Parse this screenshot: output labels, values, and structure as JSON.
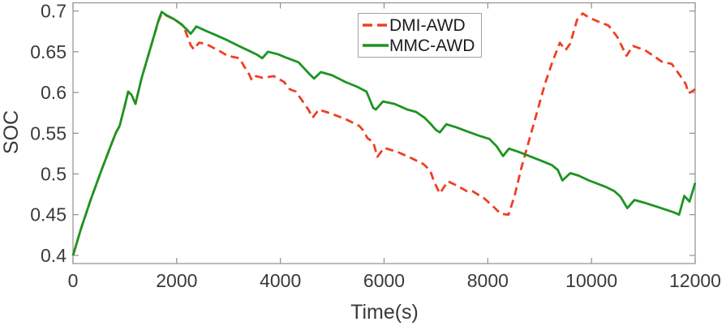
{
  "figure": {
    "background": "#ffffff"
  },
  "chart_data": {
    "type": "line",
    "title": "",
    "xlabel": "Time(s)",
    "ylabel": "SOC",
    "xlim": [
      0,
      12000
    ],
    "ylim": [
      0.39,
      0.71
    ],
    "xtick_labels": [
      "0",
      "2000",
      "4000",
      "6000",
      "8000",
      "10000",
      "12000"
    ],
    "ytick_labels": [
      "0.4",
      "0.45",
      "0.5",
      "0.55",
      "0.6",
      "0.65",
      "0.7"
    ],
    "grid": false,
    "box": true,
    "axis_color": "#909090",
    "tick_label_color": "#3a3a3a",
    "legend": {
      "position": "top-center",
      "border_color": "#a2a2a2",
      "entries": [
        "DMI-AWD",
        "MMC-AWD"
      ]
    },
    "series": [
      {
        "name": "DMI-AWD",
        "color": "#ee4023",
        "style": "dashed",
        "points": [
          [
            0,
            0.4
          ],
          [
            150,
            0.432
          ],
          [
            350,
            0.47
          ],
          [
            550,
            0.505
          ],
          [
            750,
            0.538
          ],
          [
            830,
            0.551
          ],
          [
            900,
            0.559
          ],
          [
            1000,
            0.584
          ],
          [
            1064,
            0.601
          ],
          [
            1130,
            0.597
          ],
          [
            1205,
            0.586
          ],
          [
            1320,
            0.617
          ],
          [
            1500,
            0.656
          ],
          [
            1650,
            0.688
          ],
          [
            1710,
            0.697
          ],
          [
            1850,
            0.693
          ],
          [
            2000,
            0.688
          ],
          [
            2130,
            0.682
          ],
          [
            2270,
            0.658
          ],
          [
            2330,
            0.653
          ],
          [
            2430,
            0.661
          ],
          [
            2550,
            0.66
          ],
          [
            2850,
            0.65
          ],
          [
            2980,
            0.645
          ],
          [
            3210,
            0.642
          ],
          [
            3320,
            0.63
          ],
          [
            3400,
            0.622
          ],
          [
            3450,
            0.615
          ],
          [
            3530,
            0.62
          ],
          [
            3650,
            0.618
          ],
          [
            3870,
            0.62
          ],
          [
            4070,
            0.613
          ],
          [
            4180,
            0.604
          ],
          [
            4300,
            0.601
          ],
          [
            4430,
            0.589
          ],
          [
            4550,
            0.578
          ],
          [
            4620,
            0.569
          ],
          [
            4740,
            0.579
          ],
          [
            4980,
            0.574
          ],
          [
            5270,
            0.567
          ],
          [
            5520,
            0.559
          ],
          [
            5590,
            0.554
          ],
          [
            5680,
            0.544
          ],
          [
            5790,
            0.539
          ],
          [
            5870,
            0.521
          ],
          [
            6000,
            0.532
          ],
          [
            6260,
            0.527
          ],
          [
            6540,
            0.519
          ],
          [
            6760,
            0.512
          ],
          [
            6890,
            0.504
          ],
          [
            6960,
            0.491
          ],
          [
            7075,
            0.476
          ],
          [
            7230,
            0.491
          ],
          [
            7360,
            0.487
          ],
          [
            7510,
            0.482
          ],
          [
            7590,
            0.479
          ],
          [
            7700,
            0.479
          ],
          [
            7930,
            0.47
          ],
          [
            8090,
            0.461
          ],
          [
            8250,
            0.451
          ],
          [
            8400,
            0.45
          ],
          [
            8520,
            0.474
          ],
          [
            8650,
            0.508
          ],
          [
            8800,
            0.542
          ],
          [
            8950,
            0.576
          ],
          [
            9100,
            0.61
          ],
          [
            9250,
            0.638
          ],
          [
            9390,
            0.661
          ],
          [
            9500,
            0.652
          ],
          [
            9590,
            0.66
          ],
          [
            9720,
            0.689
          ],
          [
            9830,
            0.697
          ],
          [
            9950,
            0.692
          ],
          [
            10130,
            0.687
          ],
          [
            10330,
            0.682
          ],
          [
            10500,
            0.668
          ],
          [
            10675,
            0.645
          ],
          [
            10800,
            0.657
          ],
          [
            11030,
            0.652
          ],
          [
            11240,
            0.643
          ],
          [
            11350,
            0.638
          ],
          [
            11550,
            0.635
          ],
          [
            11740,
            0.618
          ],
          [
            11820,
            0.61
          ],
          [
            11870,
            0.599
          ],
          [
            11930,
            0.601
          ],
          [
            12000,
            0.604
          ]
        ]
      },
      {
        "name": "MMC-AWD",
        "color": "#1d9421",
        "style": "solid",
        "points": [
          [
            0,
            0.4
          ],
          [
            150,
            0.432
          ],
          [
            350,
            0.47
          ],
          [
            550,
            0.505
          ],
          [
            750,
            0.538
          ],
          [
            830,
            0.551
          ],
          [
            900,
            0.559
          ],
          [
            1000,
            0.584
          ],
          [
            1064,
            0.601
          ],
          [
            1130,
            0.597
          ],
          [
            1205,
            0.586
          ],
          [
            1320,
            0.617
          ],
          [
            1500,
            0.656
          ],
          [
            1650,
            0.689
          ],
          [
            1710,
            0.699
          ],
          [
            1800,
            0.695
          ],
          [
            1950,
            0.69
          ],
          [
            2100,
            0.683
          ],
          [
            2200,
            0.677
          ],
          [
            2270,
            0.672
          ],
          [
            2380,
            0.681
          ],
          [
            2550,
            0.676
          ],
          [
            2770,
            0.67
          ],
          [
            2980,
            0.664
          ],
          [
            3200,
            0.657
          ],
          [
            3400,
            0.651
          ],
          [
            3560,
            0.646
          ],
          [
            3650,
            0.642
          ],
          [
            3760,
            0.65
          ],
          [
            3950,
            0.647
          ],
          [
            4100,
            0.643
          ],
          [
            4350,
            0.637
          ],
          [
            4570,
            0.622
          ],
          [
            4650,
            0.617
          ],
          [
            4780,
            0.625
          ],
          [
            5000,
            0.621
          ],
          [
            5250,
            0.613
          ],
          [
            5480,
            0.607
          ],
          [
            5660,
            0.601
          ],
          [
            5790,
            0.581
          ],
          [
            5840,
            0.579
          ],
          [
            5980,
            0.589
          ],
          [
            6200,
            0.586
          ],
          [
            6450,
            0.579
          ],
          [
            6620,
            0.576
          ],
          [
            6780,
            0.569
          ],
          [
            6890,
            0.562
          ],
          [
            7000,
            0.554
          ],
          [
            7075,
            0.551
          ],
          [
            7200,
            0.561
          ],
          [
            7400,
            0.557
          ],
          [
            7650,
            0.551
          ],
          [
            7830,
            0.547
          ],
          [
            8030,
            0.543
          ],
          [
            8170,
            0.534
          ],
          [
            8295,
            0.522
          ],
          [
            8410,
            0.531
          ],
          [
            8600,
            0.527
          ],
          [
            8800,
            0.522
          ],
          [
            9000,
            0.517
          ],
          [
            9230,
            0.511
          ],
          [
            9350,
            0.505
          ],
          [
            9440,
            0.492
          ],
          [
            9590,
            0.501
          ],
          [
            9750,
            0.498
          ],
          [
            9950,
            0.492
          ],
          [
            10280,
            0.484
          ],
          [
            10440,
            0.479
          ],
          [
            10560,
            0.472
          ],
          [
            10690,
            0.458
          ],
          [
            10830,
            0.468
          ],
          [
            11000,
            0.465
          ],
          [
            11300,
            0.459
          ],
          [
            11580,
            0.453
          ],
          [
            11690,
            0.45
          ],
          [
            11790,
            0.473
          ],
          [
            11890,
            0.466
          ],
          [
            12000,
            0.489
          ]
        ]
      }
    ]
  }
}
